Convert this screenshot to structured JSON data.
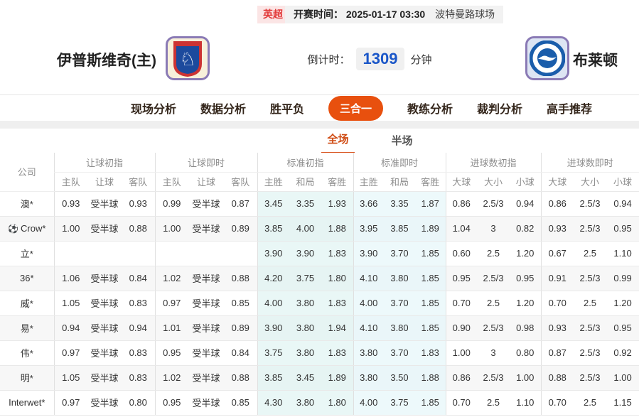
{
  "colors": {
    "accent_orange": "#e8500e",
    "live_blue": "#2c62c8",
    "badge_red": "#e23a3a",
    "tint_cyan_initial": "#e9f7f6",
    "tint_cyan_live": "#edf9fb",
    "stripe_gray": "#f7f7f7"
  },
  "top_bar": {
    "league": "英超",
    "kickoff_label": "开赛时间：",
    "kickoff_time": "2025-01-17 03:30",
    "venue": "波特曼路球场"
  },
  "match_header": {
    "home_team": "伊普斯维奇(主)",
    "away_team": "布莱顿",
    "countdown_label": "倒计时：",
    "countdown_value": "1309",
    "countdown_unit": "分钟"
  },
  "nav_tabs": [
    {
      "label": "现场分析",
      "active": false
    },
    {
      "label": "数据分析",
      "active": false
    },
    {
      "label": "胜平负",
      "active": false
    },
    {
      "label": "三合一",
      "active": true
    },
    {
      "label": "教练分析",
      "active": false
    },
    {
      "label": "裁判分析",
      "active": false
    },
    {
      "label": "高手推荐",
      "active": false
    }
  ],
  "sub_tabs": [
    {
      "label": "全场",
      "active": true
    },
    {
      "label": "半场",
      "active": false
    }
  ],
  "odds_table": {
    "company_header": "公司",
    "groups": [
      {
        "label": "让球初指",
        "cols": [
          "主队",
          "让球",
          "客队"
        ],
        "live": false,
        "tint": ""
      },
      {
        "label": "让球即时",
        "cols": [
          "主队",
          "让球",
          "客队"
        ],
        "live": true,
        "tint": ""
      },
      {
        "label": "标准初指",
        "cols": [
          "主胜",
          "和局",
          "客胜"
        ],
        "live": false,
        "tint": "tint-a"
      },
      {
        "label": "标准即时",
        "cols": [
          "主胜",
          "和局",
          "客胜"
        ],
        "live": true,
        "tint": "tint-b"
      },
      {
        "label": "进球数初指",
        "cols": [
          "大球",
          "大小",
          "小球"
        ],
        "live": false,
        "tint": ""
      },
      {
        "label": "进球数即时",
        "cols": [
          "大球",
          "大小",
          "小球"
        ],
        "live": true,
        "tint": ""
      }
    ],
    "rows": [
      {
        "company": "澳*",
        "ball_icon": false,
        "cells": [
          "0.93",
          "受半球",
          "0.93",
          "0.99",
          "受半球",
          "0.87",
          "3.45",
          "3.35",
          "1.93",
          "3.66",
          "3.35",
          "1.87",
          "0.86",
          "2.5/3",
          "0.94",
          "0.86",
          "2.5/3",
          "0.94"
        ]
      },
      {
        "company": "Crow*",
        "ball_icon": true,
        "cells": [
          "1.00",
          "受半球",
          "0.88",
          "1.00",
          "受半球",
          "0.89",
          "3.85",
          "4.00",
          "1.88",
          "3.95",
          "3.85",
          "1.89",
          "1.04",
          "3",
          "0.82",
          "0.93",
          "2.5/3",
          "0.95"
        ]
      },
      {
        "company": "立*",
        "ball_icon": false,
        "cells": [
          "",
          "",
          "",
          "",
          "",
          "",
          "3.90",
          "3.90",
          "1.83",
          "3.90",
          "3.70",
          "1.85",
          "0.60",
          "2.5",
          "1.20",
          "0.67",
          "2.5",
          "1.10"
        ]
      },
      {
        "company": "36*",
        "ball_icon": false,
        "cells": [
          "1.06",
          "受半球",
          "0.84",
          "1.02",
          "受半球",
          "0.88",
          "4.20",
          "3.75",
          "1.80",
          "4.10",
          "3.80",
          "1.85",
          "0.95",
          "2.5/3",
          "0.95",
          "0.91",
          "2.5/3",
          "0.99"
        ]
      },
      {
        "company": "威*",
        "ball_icon": false,
        "cells": [
          "1.05",
          "受半球",
          "0.83",
          "0.97",
          "受半球",
          "0.85",
          "4.00",
          "3.80",
          "1.83",
          "4.00",
          "3.70",
          "1.85",
          "0.70",
          "2.5",
          "1.20",
          "0.70",
          "2.5",
          "1.20"
        ]
      },
      {
        "company": "易*",
        "ball_icon": false,
        "cells": [
          "0.94",
          "受半球",
          "0.94",
          "1.01",
          "受半球",
          "0.89",
          "3.90",
          "3.80",
          "1.94",
          "4.10",
          "3.80",
          "1.85",
          "0.90",
          "2.5/3",
          "0.98",
          "0.93",
          "2.5/3",
          "0.95"
        ]
      },
      {
        "company": "伟*",
        "ball_icon": false,
        "cells": [
          "0.97",
          "受半球",
          "0.83",
          "0.95",
          "受半球",
          "0.84",
          "3.75",
          "3.80",
          "1.83",
          "3.80",
          "3.70",
          "1.83",
          "1.00",
          "3",
          "0.80",
          "0.87",
          "2.5/3",
          "0.92"
        ]
      },
      {
        "company": "明*",
        "ball_icon": false,
        "cells": [
          "1.05",
          "受半球",
          "0.83",
          "1.02",
          "受半球",
          "0.88",
          "3.85",
          "3.45",
          "1.89",
          "3.80",
          "3.50",
          "1.88",
          "0.86",
          "2.5/3",
          "1.00",
          "0.88",
          "2.5/3",
          "1.00"
        ]
      },
      {
        "company": "Interwet*",
        "ball_icon": false,
        "cells": [
          "0.97",
          "受半球",
          "0.80",
          "0.95",
          "受半球",
          "0.85",
          "4.30",
          "3.80",
          "1.80",
          "4.00",
          "3.75",
          "1.85",
          "0.70",
          "2.5",
          "1.10",
          "0.70",
          "2.5",
          "1.15"
        ]
      }
    ]
  }
}
